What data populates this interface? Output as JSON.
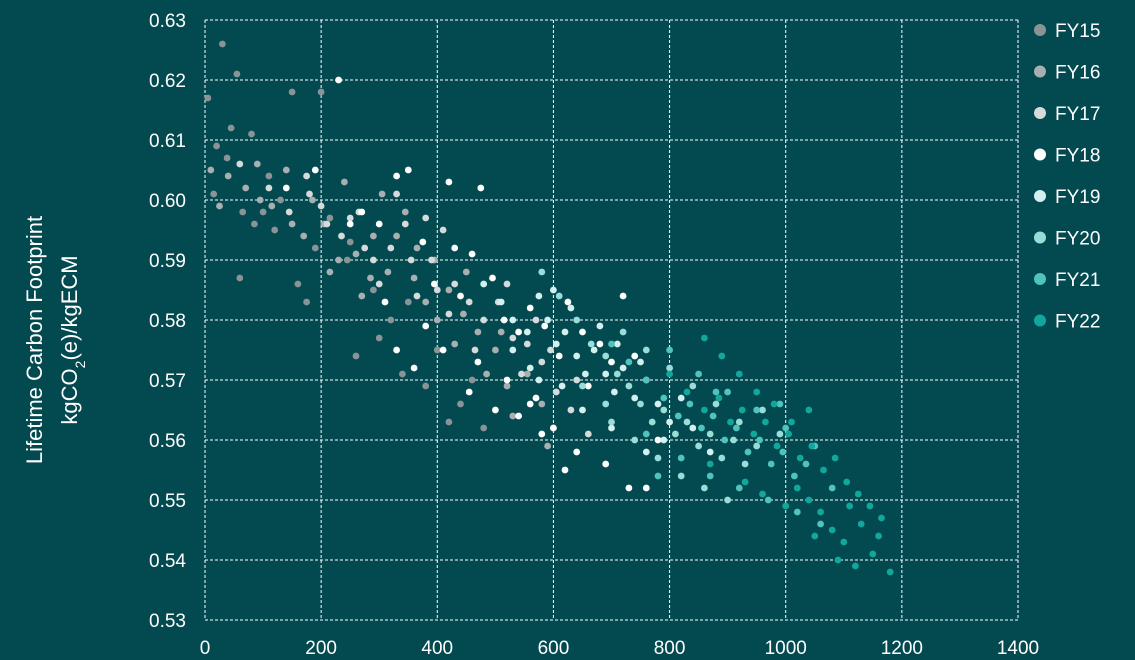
{
  "chart_data": {
    "type": "scatter",
    "ylabel_line1": "Lifetime Carbon Footprint",
    "ylabel_line2_parts": [
      "kgCO",
      "2",
      "(e)/kgECM"
    ],
    "xlabel": "",
    "title": "",
    "xlim": [
      0,
      1400
    ],
    "ylim": [
      0.53,
      0.63
    ],
    "xticks": [
      "0",
      "200",
      "400",
      "600",
      "800",
      "1000",
      "1200",
      "1400"
    ],
    "yticks": [
      "0.53",
      "0.54",
      "0.55",
      "0.56",
      "0.57",
      "0.58",
      "0.59",
      "0.60",
      "0.61",
      "0.62",
      "0.63"
    ],
    "grid": true,
    "legend_position": "right",
    "colors": {
      "background": "#024950",
      "grid": "#ffffff",
      "text": "#ffffff"
    },
    "series": [
      {
        "name": "FY15",
        "color": "#8a9396",
        "points": [
          [
            5,
            0.617
          ],
          [
            15,
            0.601
          ],
          [
            20,
            0.609
          ],
          [
            30,
            0.626
          ],
          [
            38,
            0.607
          ],
          [
            45,
            0.612
          ],
          [
            55,
            0.621
          ],
          [
            65,
            0.598
          ],
          [
            80,
            0.611
          ],
          [
            100,
            0.598
          ],
          [
            120,
            0.595
          ],
          [
            150,
            0.618
          ],
          [
            160,
            0.586
          ],
          [
            175,
            0.583
          ],
          [
            200,
            0.618
          ],
          [
            215,
            0.597
          ],
          [
            245,
            0.59
          ],
          [
            260,
            0.574
          ],
          [
            290,
            0.585
          ],
          [
            320,
            0.58
          ],
          [
            340,
            0.571
          ],
          [
            380,
            0.569
          ],
          [
            420,
            0.563
          ],
          [
            460,
            0.57
          ],
          [
            480,
            0.562
          ],
          [
            60,
            0.587
          ],
          [
            110,
            0.604
          ],
          [
            190,
            0.592
          ],
          [
            250,
            0.593
          ],
          [
            400,
            0.575
          ],
          [
            130,
            0.6
          ],
          [
            85,
            0.596
          ],
          [
            300,
            0.577
          ],
          [
            350,
            0.583
          ],
          [
            440,
            0.566
          ]
        ]
      },
      {
        "name": "FY16",
        "color": "#a9afb1",
        "points": [
          [
            10,
            0.605
          ],
          [
            25,
            0.599
          ],
          [
            40,
            0.604
          ],
          [
            70,
            0.602
          ],
          [
            90,
            0.606
          ],
          [
            115,
            0.599
          ],
          [
            140,
            0.605
          ],
          [
            170,
            0.594
          ],
          [
            205,
            0.596
          ],
          [
            230,
            0.59
          ],
          [
            260,
            0.591
          ],
          [
            285,
            0.587
          ],
          [
            305,
            0.601
          ],
          [
            330,
            0.594
          ],
          [
            360,
            0.587
          ],
          [
            380,
            0.583
          ],
          [
            400,
            0.58
          ],
          [
            420,
            0.585
          ],
          [
            445,
            0.581
          ],
          [
            470,
            0.578
          ],
          [
            500,
            0.575
          ],
          [
            520,
            0.569
          ],
          [
            555,
            0.571
          ],
          [
            580,
            0.566
          ],
          [
            600,
            0.562
          ],
          [
            150,
            0.596
          ],
          [
            185,
            0.6
          ],
          [
            215,
            0.588
          ],
          [
            270,
            0.584
          ],
          [
            315,
            0.588
          ],
          [
            345,
            0.598
          ],
          [
            395,
            0.59
          ],
          [
            430,
            0.576
          ],
          [
            485,
            0.571
          ],
          [
            530,
            0.564
          ],
          [
            95,
            0.6
          ],
          [
            240,
            0.603
          ],
          [
            290,
            0.594
          ],
          [
            365,
            0.592
          ],
          [
            450,
            0.588
          ],
          [
            510,
            0.578
          ],
          [
            590,
            0.559
          ]
        ]
      },
      {
        "name": "FY17",
        "color": "#d6dadb",
        "points": [
          [
            60,
            0.606
          ],
          [
            110,
            0.602
          ],
          [
            145,
            0.598
          ],
          [
            180,
            0.601
          ],
          [
            210,
            0.596
          ],
          [
            235,
            0.594
          ],
          [
            265,
            0.598
          ],
          [
            290,
            0.59
          ],
          [
            320,
            0.592
          ],
          [
            345,
            0.596
          ],
          [
            365,
            0.584
          ],
          [
            390,
            0.59
          ],
          [
            410,
            0.595
          ],
          [
            430,
            0.586
          ],
          [
            455,
            0.583
          ],
          [
            480,
            0.58
          ],
          [
            505,
            0.583
          ],
          [
            530,
            0.577
          ],
          [
            555,
            0.576
          ],
          [
            580,
            0.573
          ],
          [
            605,
            0.568
          ],
          [
            630,
            0.565
          ],
          [
            660,
            0.561
          ],
          [
            200,
            0.599
          ],
          [
            250,
            0.597
          ],
          [
            300,
            0.586
          ],
          [
            355,
            0.59
          ],
          [
            380,
            0.597
          ],
          [
            420,
            0.581
          ],
          [
            465,
            0.575
          ],
          [
            520,
            0.586
          ],
          [
            570,
            0.58
          ],
          [
            595,
            0.575
          ],
          [
            640,
            0.57
          ],
          [
            175,
            0.604
          ],
          [
            275,
            0.592
          ],
          [
            330,
            0.601
          ],
          [
            400,
            0.585
          ],
          [
            545,
            0.571
          ]
        ]
      },
      {
        "name": "FY18",
        "color": "#ffffff",
        "points": [
          [
            140,
            0.602
          ],
          [
            190,
            0.605
          ],
          [
            230,
            0.62
          ],
          [
            270,
            0.598
          ],
          [
            300,
            0.596
          ],
          [
            330,
            0.604
          ],
          [
            350,
            0.605
          ],
          [
            375,
            0.593
          ],
          [
            395,
            0.586
          ],
          [
            420,
            0.603
          ],
          [
            440,
            0.584
          ],
          [
            460,
            0.591
          ],
          [
            475,
            0.602
          ],
          [
            495,
            0.587
          ],
          [
            515,
            0.58
          ],
          [
            540,
            0.578
          ],
          [
            560,
            0.582
          ],
          [
            585,
            0.579
          ],
          [
            610,
            0.574
          ],
          [
            625,
            0.583
          ],
          [
            650,
            0.578
          ],
          [
            680,
            0.576
          ],
          [
            700,
            0.573
          ],
          [
            720,
            0.584
          ],
          [
            740,
            0.574
          ],
          [
            760,
            0.552
          ],
          [
            780,
            0.56
          ],
          [
            560,
            0.566
          ],
          [
            600,
            0.562
          ],
          [
            620,
            0.555
          ],
          [
            330,
            0.575
          ],
          [
            360,
            0.572
          ],
          [
            410,
            0.575
          ],
          [
            455,
            0.568
          ],
          [
            500,
            0.565
          ],
          [
            540,
            0.564
          ],
          [
            580,
            0.561
          ],
          [
            640,
            0.558
          ],
          [
            690,
            0.556
          ],
          [
            730,
            0.552
          ],
          [
            250,
            0.596
          ],
          [
            310,
            0.583
          ],
          [
            380,
            0.579
          ],
          [
            430,
            0.592
          ],
          [
            470,
            0.573
          ],
          [
            520,
            0.57
          ],
          [
            570,
            0.567
          ],
          [
            660,
            0.569
          ]
        ]
      },
      {
        "name": "FY19",
        "color": "#d2f0ee",
        "points": [
          [
            480,
            0.586
          ],
          [
            510,
            0.583
          ],
          [
            530,
            0.58
          ],
          [
            555,
            0.578
          ],
          [
            575,
            0.584
          ],
          [
            590,
            0.58
          ],
          [
            605,
            0.576
          ],
          [
            620,
            0.578
          ],
          [
            640,
            0.574
          ],
          [
            655,
            0.571
          ],
          [
            670,
            0.575
          ],
          [
            690,
            0.571
          ],
          [
            705,
            0.568
          ],
          [
            720,
            0.572
          ],
          [
            740,
            0.567
          ],
          [
            760,
            0.57
          ],
          [
            780,
            0.566
          ],
          [
            800,
            0.563
          ],
          [
            820,
            0.567
          ],
          [
            600,
            0.585
          ],
          [
            630,
            0.582
          ],
          [
            680,
            0.579
          ],
          [
            710,
            0.576
          ],
          [
            750,
            0.573
          ],
          [
            790,
            0.56
          ],
          [
            560,
            0.572
          ],
          [
            615,
            0.569
          ],
          [
            650,
            0.565
          ],
          [
            700,
            0.562
          ],
          [
            760,
            0.558
          ],
          [
            840,
            0.562
          ],
          [
            870,
            0.558
          ],
          [
            530,
            0.575
          ],
          [
            575,
            0.57
          ]
        ]
      },
      {
        "name": "FY20",
        "color": "#9adcd8",
        "points": [
          [
            580,
            0.588
          ],
          [
            610,
            0.584
          ],
          [
            640,
            0.58
          ],
          [
            665,
            0.576
          ],
          [
            690,
            0.574
          ],
          [
            710,
            0.571
          ],
          [
            730,
            0.569
          ],
          [
            750,
            0.566
          ],
          [
            770,
            0.563
          ],
          [
            790,
            0.565
          ],
          [
            810,
            0.561
          ],
          [
            830,
            0.563
          ],
          [
            850,
            0.559
          ],
          [
            870,
            0.561
          ],
          [
            890,
            0.557
          ],
          [
            910,
            0.56
          ],
          [
            930,
            0.556
          ],
          [
            950,
            0.559
          ],
          [
            720,
            0.578
          ],
          [
            760,
            0.575
          ],
          [
            800,
            0.572
          ],
          [
            840,
            0.569
          ],
          [
            880,
            0.566
          ],
          [
            920,
            0.563
          ],
          [
            700,
            0.563
          ],
          [
            740,
            0.56
          ],
          [
            780,
            0.557
          ],
          [
            820,
            0.554
          ],
          [
            860,
            0.552
          ],
          [
            900,
            0.55
          ],
          [
            650,
            0.569
          ],
          [
            690,
            0.566
          ],
          [
            960,
            0.565
          ],
          [
            990,
            0.561
          ]
        ]
      },
      {
        "name": "FY21",
        "color": "#4fc3bc",
        "points": [
          [
            700,
            0.576
          ],
          [
            730,
            0.573
          ],
          [
            760,
            0.57
          ],
          [
            790,
            0.567
          ],
          [
            815,
            0.564
          ],
          [
            835,
            0.566
          ],
          [
            855,
            0.562
          ],
          [
            875,
            0.564
          ],
          [
            895,
            0.56
          ],
          [
            915,
            0.562
          ],
          [
            935,
            0.558
          ],
          [
            955,
            0.56
          ],
          [
            975,
            0.556
          ],
          [
            995,
            0.558
          ],
          [
            1015,
            0.554
          ],
          [
            1035,
            0.556
          ],
          [
            800,
            0.575
          ],
          [
            850,
            0.571
          ],
          [
            900,
            0.568
          ],
          [
            950,
            0.565
          ],
          [
            1000,
            0.562
          ],
          [
            1050,
            0.559
          ],
          [
            820,
            0.557
          ],
          [
            870,
            0.554
          ],
          [
            920,
            0.552
          ],
          [
            970,
            0.55
          ],
          [
            1020,
            0.548
          ],
          [
            1060,
            0.546
          ],
          [
            760,
            0.561
          ],
          [
            780,
            0.554
          ],
          [
            880,
            0.568
          ],
          [
            990,
            0.566
          ],
          [
            1080,
            0.552
          ]
        ]
      },
      {
        "name": "FY22",
        "color": "#12a79d",
        "points": [
          [
            800,
            0.571
          ],
          [
            830,
            0.568
          ],
          [
            860,
            0.565
          ],
          [
            885,
            0.567
          ],
          [
            905,
            0.563
          ],
          [
            925,
            0.565
          ],
          [
            945,
            0.561
          ],
          [
            965,
            0.563
          ],
          [
            985,
            0.559
          ],
          [
            1005,
            0.561
          ],
          [
            1025,
            0.557
          ],
          [
            1045,
            0.559
          ],
          [
            1065,
            0.555
          ],
          [
            1085,
            0.557
          ],
          [
            1105,
            0.553
          ],
          [
            1125,
            0.551
          ],
          [
            1145,
            0.549
          ],
          [
            1165,
            0.547
          ],
          [
            1180,
            0.538
          ],
          [
            1150,
            0.541
          ],
          [
            1120,
            0.539
          ],
          [
            1100,
            0.543
          ],
          [
            1080,
            0.545
          ],
          [
            1060,
            0.548
          ],
          [
            1040,
            0.55
          ],
          [
            1020,
            0.552
          ],
          [
            860,
            0.577
          ],
          [
            890,
            0.574
          ],
          [
            920,
            0.571
          ],
          [
            950,
            0.568
          ],
          [
            980,
            0.566
          ],
          [
            1010,
            0.563
          ],
          [
            1040,
            0.565
          ],
          [
            1000,
            0.549
          ],
          [
            960,
            0.551
          ],
          [
            930,
            0.553
          ],
          [
            870,
            0.556
          ],
          [
            1130,
            0.546
          ],
          [
            1160,
            0.544
          ],
          [
            1090,
            0.54
          ],
          [
            1110,
            0.549
          ],
          [
            1050,
            0.544
          ]
        ]
      }
    ]
  }
}
